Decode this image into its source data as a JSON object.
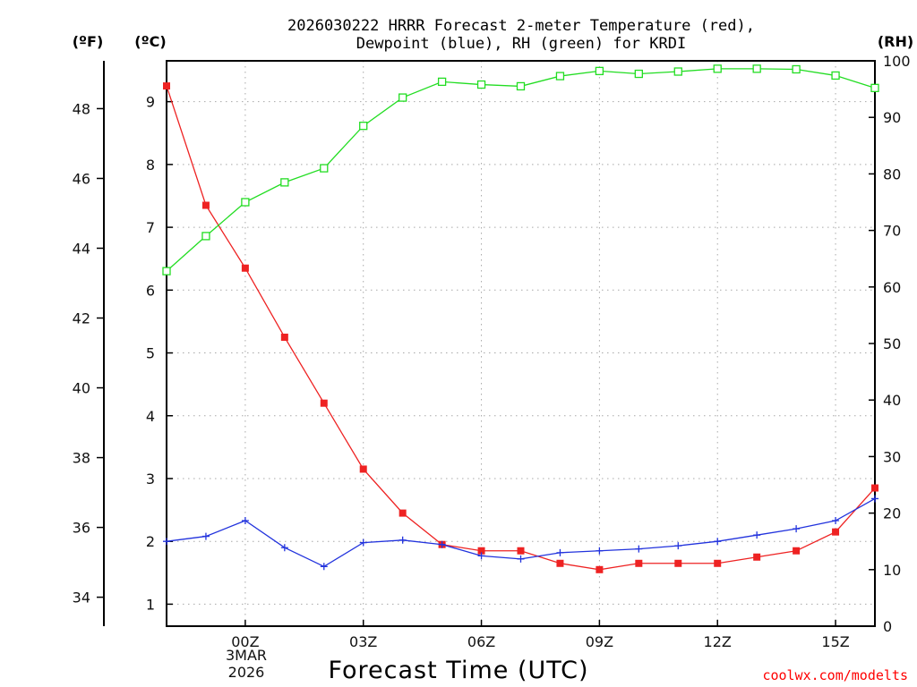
{
  "chart_data": {
    "type": "line",
    "title_lines": [
      "2026030222 HRRR Forecast 2-meter Temperature (red),",
      "Dewpoint (blue), RH (green) for KRDI"
    ],
    "station": "KRDI",
    "xlabel": "Forecast Time (UTC)",
    "date_label": [
      "3MAR",
      "2026"
    ],
    "units": {
      "left_f": "(ºF)",
      "left_c": "(ºC)",
      "right": "(RH)"
    },
    "credit": "coolwx.com/modelts",
    "x": [
      -2,
      -1,
      0,
      1,
      2,
      3,
      4,
      5,
      6,
      7,
      8,
      9,
      10,
      11,
      12,
      13,
      14,
      15,
      16
    ],
    "x_ticks": [
      {
        "value": 0,
        "label": "00Z"
      },
      {
        "value": 3,
        "label": "03Z"
      },
      {
        "value": 6,
        "label": "06Z"
      },
      {
        "value": 9,
        "label": "09Z"
      },
      {
        "value": 12,
        "label": "12Z"
      },
      {
        "value": 15,
        "label": "15Z"
      }
    ],
    "xlim": [
      -2,
      16
    ],
    "celsius_axis": {
      "ylim": [
        0.65,
        9.65
      ],
      "ticks": [
        1,
        2,
        3,
        4,
        5,
        6,
        7,
        8,
        9
      ]
    },
    "fahrenheit_axis": {
      "ticks": [
        34,
        36,
        38,
        40,
        42,
        44,
        46,
        48
      ]
    },
    "rh_axis": {
      "ylim": [
        0,
        100
      ],
      "ticks": [
        0,
        10,
        20,
        30,
        40,
        50,
        60,
        70,
        80,
        90,
        100
      ]
    },
    "series": [
      {
        "name": "Temperature",
        "axis": "celsius",
        "color": "#ee2222",
        "marker": "filled-square",
        "values": [
          9.25,
          7.35,
          6.35,
          5.25,
          4.2,
          3.15,
          2.45,
          1.95,
          1.85,
          1.85,
          1.65,
          1.55,
          1.65,
          1.65,
          1.65,
          1.75,
          1.85,
          2.15,
          2.85
        ]
      },
      {
        "name": "Dewpoint",
        "axis": "celsius",
        "color": "#2233dd",
        "marker": "plus",
        "values": [
          2.0,
          2.08,
          2.33,
          1.9,
          1.6,
          1.98,
          2.02,
          1.95,
          1.77,
          1.72,
          1.82,
          1.85,
          1.88,
          1.93,
          2.0,
          2.1,
          2.2,
          2.33,
          2.68
        ]
      },
      {
        "name": "RH",
        "axis": "rh",
        "color": "#22dd22",
        "marker": "open-square",
        "values": [
          62.8,
          69.0,
          75.0,
          78.5,
          81.0,
          88.5,
          93.5,
          96.3,
          95.8,
          95.5,
          97.3,
          98.2,
          97.7,
          98.1,
          98.6,
          98.6,
          98.5,
          97.4,
          95.2
        ]
      }
    ]
  }
}
